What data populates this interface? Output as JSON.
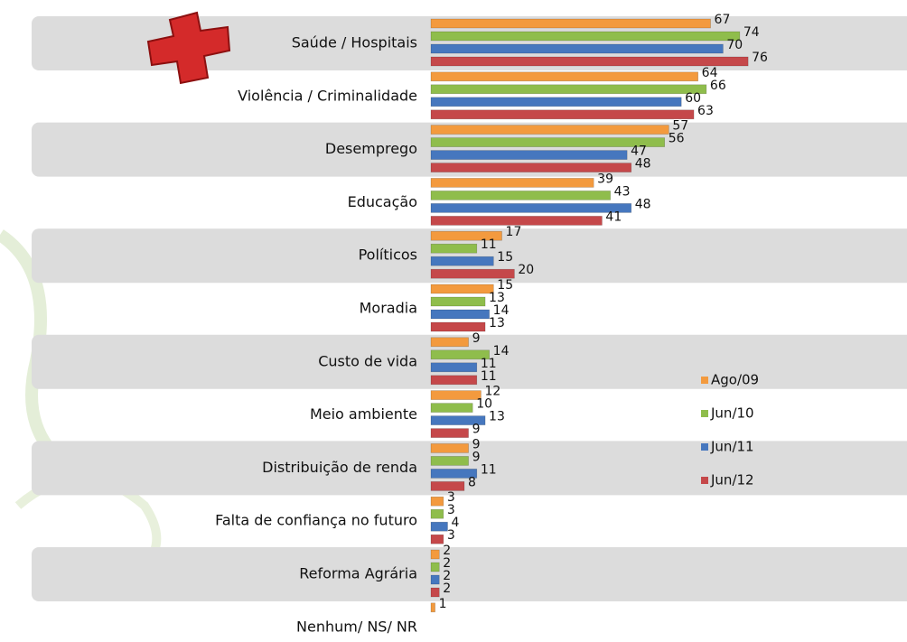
{
  "chart_data": {
    "type": "bar",
    "orientation": "horizontal",
    "categories": [
      "Saúde / Hospitais",
      "Violência / Criminalidade",
      "Desemprego",
      "Educação",
      "Políticos",
      "Moradia",
      "Custo de vida",
      "Meio ambiente",
      "Distribuição de renda",
      "Falta de confiança no futuro",
      "Reforma Agrária",
      "Nenhum/ NS/ NR"
    ],
    "series": [
      {
        "name": "Ago/09",
        "color": "#f39a3e",
        "values": [
          67,
          64,
          57,
          39,
          17,
          15,
          9,
          12,
          9,
          3,
          2,
          1
        ]
      },
      {
        "name": "Jun/10",
        "color": "#8fbd4c",
        "values": [
          74,
          66,
          56,
          43,
          11,
          13,
          14,
          10,
          9,
          3,
          2,
          null
        ]
      },
      {
        "name": "Jun/11",
        "color": "#4677be",
        "values": [
          70,
          60,
          47,
          48,
          15,
          14,
          11,
          13,
          11,
          4,
          2,
          null
        ]
      },
      {
        "name": "Jun/12",
        "color": "#c5484a",
        "values": [
          76,
          63,
          48,
          41,
          20,
          13,
          11,
          9,
          8,
          3,
          2,
          null
        ]
      }
    ],
    "xlim": [
      0,
      100
    ]
  }
}
